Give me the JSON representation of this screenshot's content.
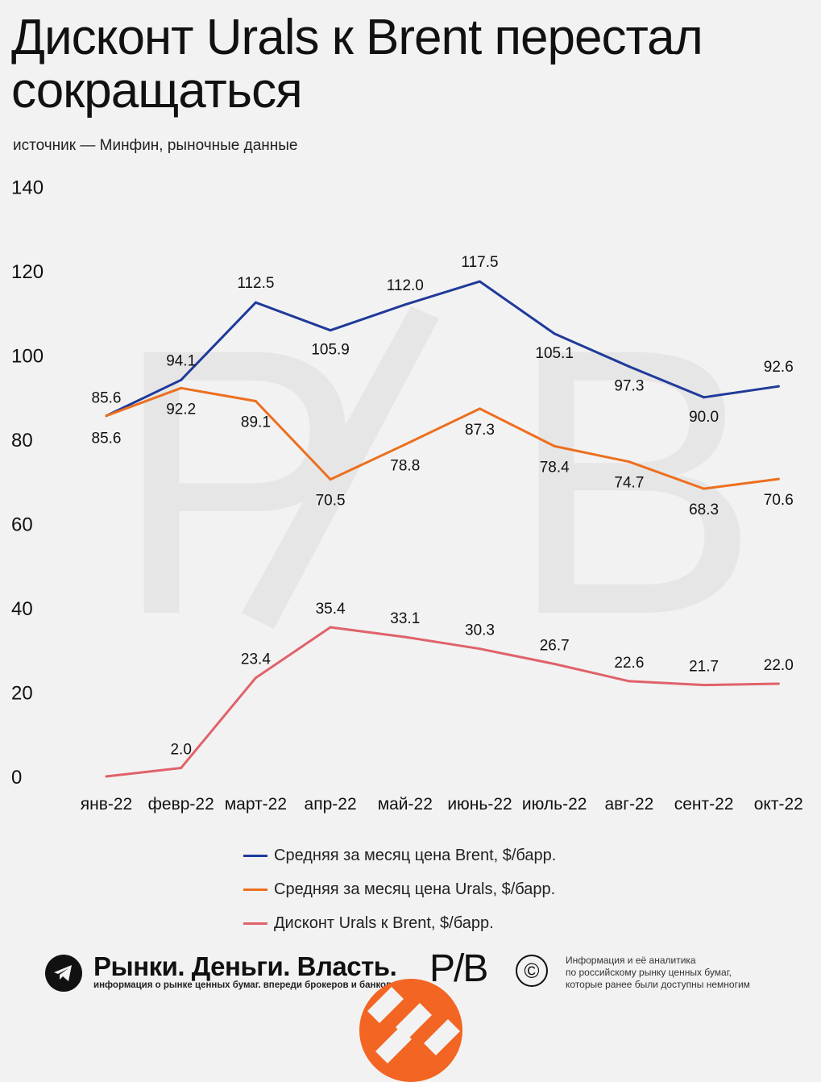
{
  "title": "Дисконт Urals к Brent перестал сокращаться",
  "subtitle": "источник — Минфин, рыночные данные",
  "colors": {
    "brent": "#1f3a9a",
    "urals": "#ec6f1f",
    "discount": "#e0626a",
    "watermark": "#e6e6e6"
  },
  "chart_data": {
    "type": "line",
    "categories": [
      "янв-22",
      "февр-22",
      "март-22",
      "апр-22",
      "май-22",
      "июнь-22",
      "июль-22",
      "авг-22",
      "сент-22",
      "окт-22"
    ],
    "series": [
      {
        "name": "Средняя за месяц цена Brent, $/барр.",
        "key": "brent",
        "values": [
          85.6,
          94.1,
          112.5,
          105.9,
          112.0,
          117.5,
          105.1,
          97.3,
          90.0,
          92.6
        ]
      },
      {
        "name": "Средняя за месяц цена Urals, $/барр.",
        "key": "urals",
        "values": [
          85.6,
          92.2,
          89.1,
          70.5,
          78.8,
          87.3,
          78.4,
          74.7,
          68.3,
          70.6
        ]
      },
      {
        "name": "Дисконт Urals к Brent, $/барр.",
        "key": "discount",
        "values": [
          null,
          2.0,
          23.4,
          35.4,
          33.1,
          30.3,
          26.7,
          22.6,
          21.7,
          22.0
        ],
        "plotted_values": [
          0,
          2.0,
          23.4,
          35.4,
          33.1,
          30.3,
          26.7,
          22.6,
          21.7,
          22.0
        ]
      }
    ],
    "yticks": [
      0,
      20,
      40,
      60,
      80,
      100,
      120,
      140
    ],
    "ylim": [
      0,
      140
    ],
    "grid": false,
    "legend_position": "bottom"
  },
  "footer": {
    "brand_name": "Рынки. Деньги. Власть.",
    "brand_tagline": "информация о рынке ценных бумаг. впереди брокеров и банков.",
    "logo_text": "P/B",
    "copyright_symbol": "©",
    "note_lines": [
      "Информация и её аналитика",
      "по российскому рынку ценных бумаг,",
      "которые ранее были доступны немногим"
    ],
    "icon": "telegram-icon"
  }
}
